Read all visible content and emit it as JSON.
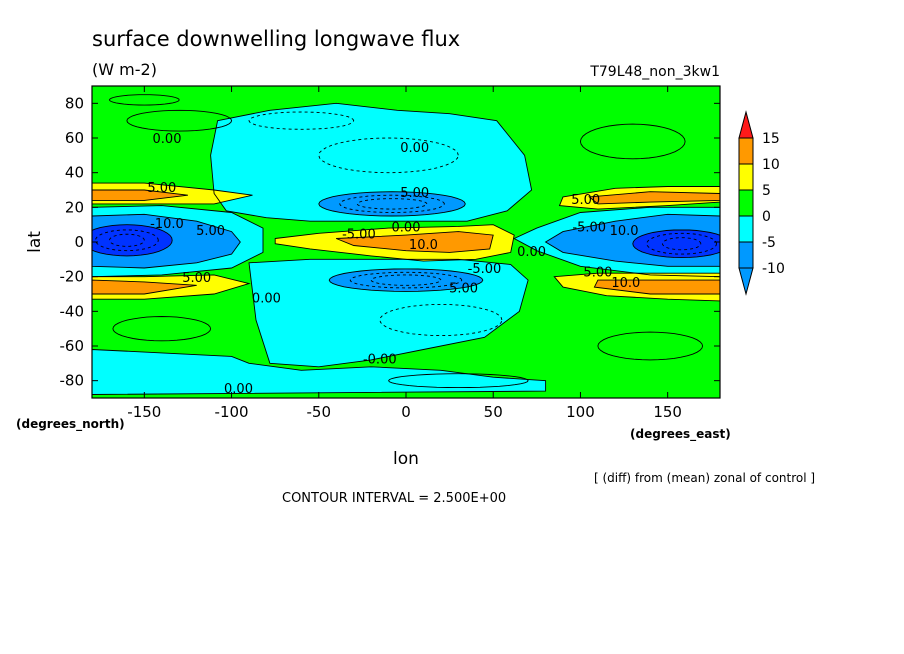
{
  "chart_data": {
    "type": "heatmap",
    "title": "surface downwelling longwave flux",
    "units": "(W m-2)",
    "run_label": "T79L48_non_3kw1",
    "xlabel": "lon",
    "ylabel": "lat",
    "x_unit_label": "(degrees_east)",
    "y_unit_label": "(degrees_north)",
    "xlim": [
      -180,
      180
    ],
    "ylim": [
      -90,
      90
    ],
    "x_ticks": [
      -150,
      -100,
      -50,
      0,
      50,
      100,
      150
    ],
    "y_ticks": [
      80,
      60,
      40,
      20,
      0,
      -20,
      -40,
      -60,
      -80
    ],
    "contour_interval_text": "CONTOUR INTERVAL = 2.500E+00",
    "note": "[ (diff) from (mean) zonal of control ]",
    "colorbar": {
      "levels": [
        15,
        10,
        5,
        0,
        -5,
        -10
      ],
      "colors": [
        "#ff1a1a",
        "#ff9900",
        "#ffff00",
        "#00ff00",
        "#00ffff",
        "#0099ff",
        "#0033ff",
        "#1a1ac8"
      ]
    },
    "contour_labels": [
      {
        "text": "0.00",
        "lon": -137,
        "lat": 59
      },
      {
        "text": "0.00",
        "lon": 5,
        "lat": 54
      },
      {
        "text": "5.00",
        "lon": -140,
        "lat": 31
      },
      {
        "text": "5.00",
        "lon": 5,
        "lat": 28
      },
      {
        "text": "5.00",
        "lon": 103,
        "lat": 24
      },
      {
        "text": "-10.0",
        "lon": -137,
        "lat": 10
      },
      {
        "text": "5.00",
        "lon": -112,
        "lat": 6
      },
      {
        "text": "-5.00",
        "lon": -27,
        "lat": 4
      },
      {
        "text": "0.00",
        "lon": 0,
        "lat": 8
      },
      {
        "text": "10.0",
        "lon": 10,
        "lat": -2
      },
      {
        "text": "-5.00",
        "lon": 105,
        "lat": 8
      },
      {
        "text": "10.0",
        "lon": 125,
        "lat": 6
      },
      {
        "text": "0.00",
        "lon": 72,
        "lat": -6
      },
      {
        "text": "-5.00",
        "lon": 45,
        "lat": -16
      },
      {
        "text": "5.00",
        "lon": -120,
        "lat": -21
      },
      {
        "text": "5.00",
        "lon": 33,
        "lat": -27
      },
      {
        "text": "5.00",
        "lon": 110,
        "lat": -18
      },
      {
        "text": "10.0",
        "lon": 126,
        "lat": -24
      },
      {
        "text": "0.00",
        "lon": -80,
        "lat": -33
      },
      {
        "text": "-0.00",
        "lon": -15,
        "lat": -68
      },
      {
        "text": "0.00",
        "lon": -96,
        "lat": -85
      }
    ]
  }
}
